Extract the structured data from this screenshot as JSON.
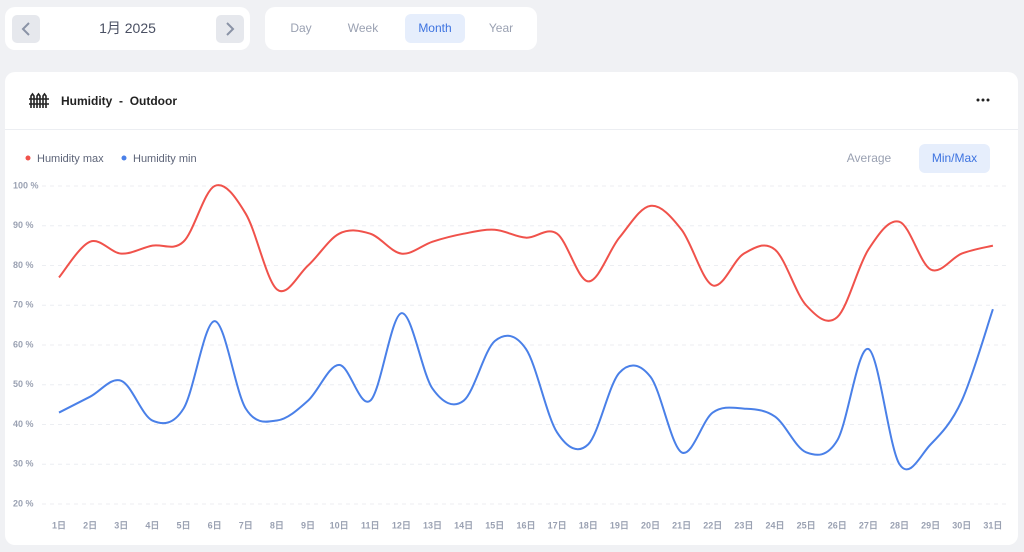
{
  "nav": {
    "period": "1月 2025",
    "tabs": [
      "Day",
      "Week",
      "Month",
      "Year"
    ],
    "selected_tab": 2
  },
  "card": {
    "title": "Humidity",
    "separator": "-",
    "subtitle": "Outdoor",
    "modes": [
      "Average",
      "Min/Max"
    ],
    "selected_mode": 1
  },
  "chart_data": {
    "type": "line",
    "categories": [
      "1日",
      "2日",
      "3日",
      "4日",
      "5日",
      "6日",
      "7日",
      "8日",
      "9日",
      "10日",
      "11日",
      "12日",
      "13日",
      "14日",
      "15日",
      "16日",
      "17日",
      "18日",
      "19日",
      "20日",
      "21日",
      "22日",
      "23日",
      "24日",
      "25日",
      "26日",
      "27日",
      "28日",
      "29日",
      "30日",
      "31日"
    ],
    "series": [
      {
        "name": "Humidity max",
        "color": "#f0524b",
        "values": [
          77,
          86,
          83,
          85,
          86,
          100,
          93,
          74,
          80,
          88,
          88,
          83,
          86,
          88,
          89,
          87,
          88,
          76,
          87,
          95,
          89,
          75,
          83,
          84,
          70,
          67,
          84,
          91,
          79,
          83,
          85
        ]
      },
      {
        "name": "Humidity min",
        "color": "#4a80e8",
        "values": [
          43,
          47,
          51,
          41,
          44,
          66,
          44,
          41,
          46,
          55,
          46,
          68,
          49,
          46,
          61,
          59,
          38,
          35,
          53,
          52,
          33,
          43,
          44,
          42,
          33,
          36,
          59,
          30,
          35,
          46,
          69
        ]
      }
    ],
    "ylim": [
      20,
      100
    ],
    "yticks": [
      {
        "value": 20,
        "label": "20 %"
      },
      {
        "value": 30,
        "label": "30 %"
      },
      {
        "value": 40,
        "label": "40 %"
      },
      {
        "value": 50,
        "label": "50 %"
      },
      {
        "value": 60,
        "label": "60 %"
      },
      {
        "value": 70,
        "label": "70 %"
      },
      {
        "value": 80,
        "label": "80 %"
      },
      {
        "value": 90,
        "label": "90 %"
      },
      {
        "value": 100,
        "label": "100 %"
      }
    ],
    "grid": true,
    "legend": "top-left",
    "smooth": true
  }
}
